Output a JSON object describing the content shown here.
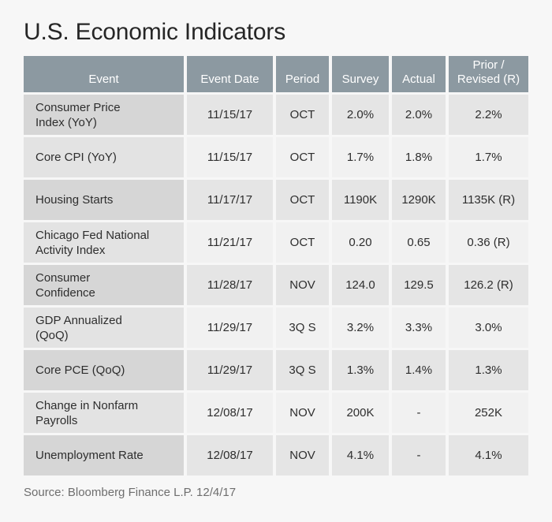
{
  "colors": {
    "page_bg": "#F7F7F7",
    "header_bg": "#8C99A1",
    "header_text": "#FFFFFF",
    "row_dark_first": "#D6D6D6",
    "row_dark_rest": "#E5E5E5",
    "row_light_first": "#E3E3E3",
    "row_light_rest": "#F1F1F1",
    "text": "#2E2E2E",
    "title_text": "#262626",
    "source_text": "#6E6E6E"
  },
  "chart_data": {
    "type": "table",
    "title": "U.S. Economic Indicators",
    "columns": [
      "Event",
      "Event Date",
      "Period",
      "Survey",
      "Actual",
      "Prior / Revised (R)"
    ],
    "rows": [
      [
        "Consumer Price Index (YoY)",
        "11/15/17",
        "OCT",
        "2.0%",
        "2.0%",
        "2.2%"
      ],
      [
        "Core CPI (YoY)",
        "11/15/17",
        "OCT",
        "1.7%",
        "1.8%",
        "1.7%"
      ],
      [
        "Housing Starts",
        "11/17/17",
        "OCT",
        "1190K",
        "1290K",
        "1135K (R)"
      ],
      [
        "Chicago Fed National Activity Index",
        "11/21/17",
        "OCT",
        "0.20",
        "0.65",
        "0.36 (R)"
      ],
      [
        "Consumer Confidence",
        "11/28/17",
        "NOV",
        "124.0",
        "129.5",
        "126.2 (R)"
      ],
      [
        "GDP Annualized (QoQ)",
        "11/29/17",
        "3Q S",
        "3.2%",
        "3.3%",
        "3.0%"
      ],
      [
        "Core PCE (QoQ)",
        "11/29/17",
        "3Q S",
        "1.3%",
        "1.4%",
        "1.3%"
      ],
      [
        "Change in Nonfarm Payrolls",
        "12/08/17",
        "NOV",
        "200K",
        "-",
        "252K"
      ],
      [
        "Unemployment Rate",
        "12/08/17",
        "NOV",
        "4.1%",
        "-",
        "4.1%"
      ]
    ],
    "source": "Source: Bloomberg Finance L.P. 12/4/17"
  }
}
